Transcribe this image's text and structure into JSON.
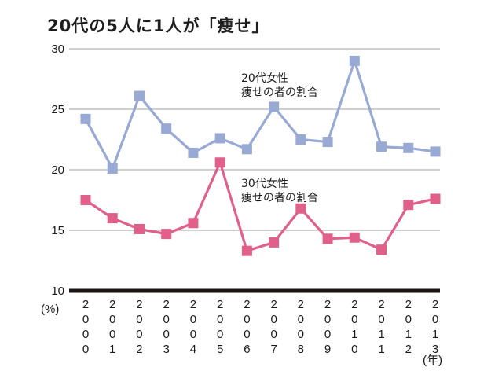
{
  "title": "20代の5人に1人が「痩せ」",
  "chart_data": {
    "type": "line",
    "title": "20代の5人に1人が「痩せ」",
    "xlabel": "(年)",
    "ylabel": "(%)",
    "ylim": [
      10,
      30
    ],
    "yticks": [
      "30",
      "25",
      "20",
      "15",
      "10"
    ],
    "grid": true,
    "x": [
      "2000",
      "2001",
      "2002",
      "2003",
      "2004",
      "2005",
      "2006",
      "2007",
      "2008",
      "2009",
      "2010",
      "2011",
      "2012",
      "2013"
    ],
    "series": [
      {
        "name": "20代女性 痩せの者の割合",
        "label_lines": [
          "20代女性",
          "痩せの者の割合"
        ],
        "color": "#98a9d3",
        "values": [
          24.2,
          20.1,
          26.1,
          23.4,
          21.4,
          22.6,
          21.7,
          25.2,
          22.5,
          22.3,
          29.0,
          21.9,
          21.8,
          21.5
        ]
      },
      {
        "name": "30代女性 痩せの者の割合",
        "label_lines": [
          "30代女性",
          "痩せの者の割合"
        ],
        "color": "#e0608a",
        "values": [
          17.5,
          16.0,
          15.1,
          14.7,
          15.6,
          20.6,
          13.3,
          14.0,
          16.8,
          14.3,
          14.4,
          13.4,
          17.1,
          17.6
        ]
      }
    ]
  }
}
